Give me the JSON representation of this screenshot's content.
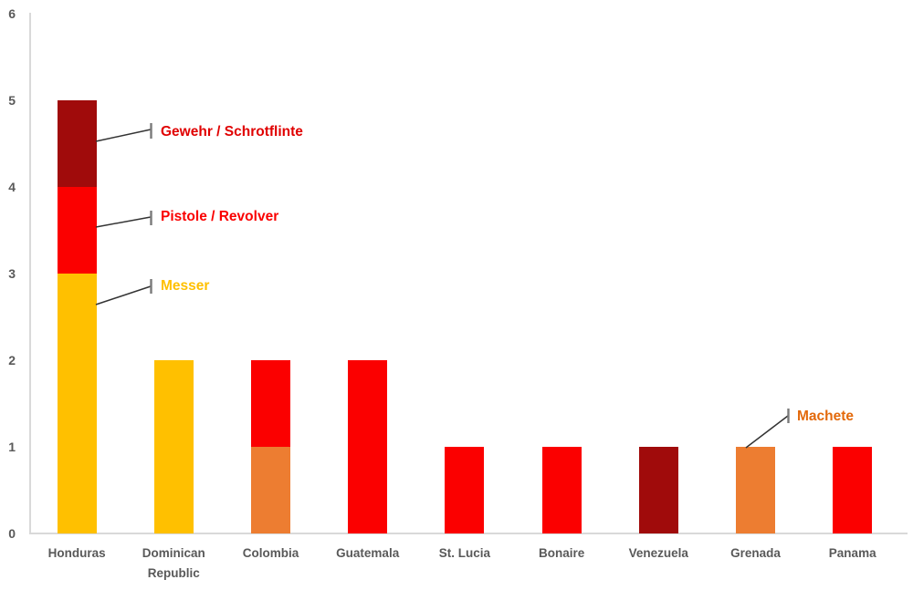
{
  "chart_data": {
    "type": "bar",
    "stacked": true,
    "title": "",
    "xlabel": "",
    "ylabel": "",
    "categories": [
      "Honduras",
      "Dominican Republic",
      "Colombia",
      "Guatemala",
      "St. Lucia",
      "Bonaire",
      "Venezuela",
      "Grenada",
      "Panama"
    ],
    "series": [
      {
        "name": "Messer",
        "color": "#FFC000",
        "values": [
          3,
          2,
          0,
          0,
          0,
          0,
          0,
          0,
          0
        ]
      },
      {
        "name": "Machete",
        "color": "#ED7D31",
        "values": [
          0,
          0,
          1,
          0,
          0,
          0,
          0,
          1,
          0
        ]
      },
      {
        "name": "Pistole / Revolver",
        "color": "#FB0000",
        "values": [
          1,
          0,
          1,
          2,
          1,
          1,
          0,
          0,
          1
        ]
      },
      {
        "name": "Gewehr / Schrotflinte",
        "color": "#A00B0B",
        "values": [
          1,
          0,
          0,
          0,
          0,
          0,
          1,
          0,
          0
        ]
      }
    ],
    "ylim": [
      0,
      6
    ],
    "yticks": [
      0,
      1,
      2,
      3,
      4,
      5,
      6
    ],
    "grid": false,
    "legend_position": "none",
    "annotation_style": "callout labels with leader lines"
  },
  "annotations": [
    {
      "text": "Gewehr / Schrotflinte",
      "color": "#E00000",
      "points_to": "Honduras top segment"
    },
    {
      "text": "Pistole / Revolver",
      "color": "#FA0000",
      "points_to": "Honduras middle segment"
    },
    {
      "text": "Messer",
      "color": "#FFC000",
      "points_to": "Honduras bottom segment"
    },
    {
      "text": "Machete",
      "color": "#E3690B",
      "points_to": "Grenada bar"
    }
  ]
}
